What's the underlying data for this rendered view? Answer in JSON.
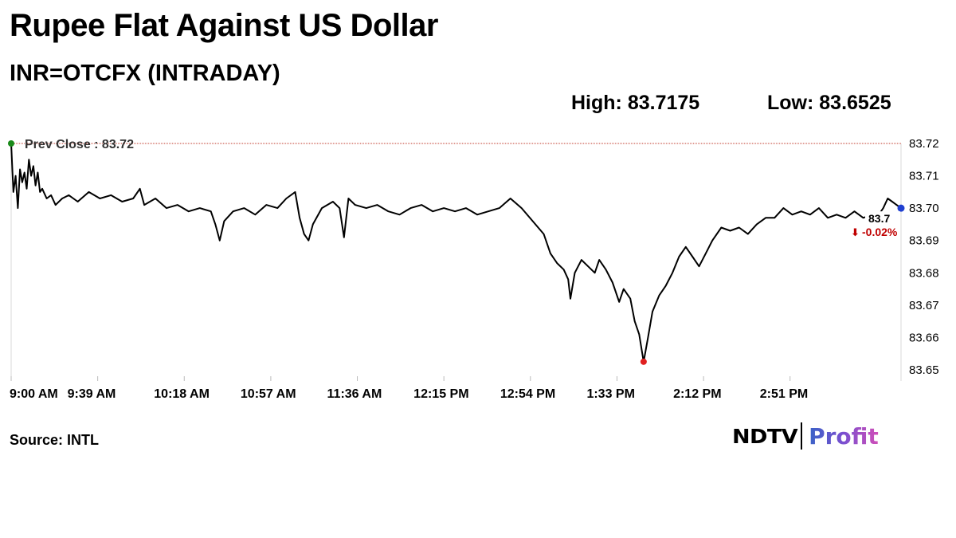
{
  "title": "Rupee Flat Against US Dollar",
  "subtitle": "INR=OTCFX (INTRADAY)",
  "stats": {
    "high": "High: 83.7175",
    "low": "Low: 83.6525"
  },
  "source": "Source: INTL",
  "logo": {
    "brand": "NDTV",
    "product": "Profit"
  },
  "colors": {
    "line": "#000000",
    "prev_close_line": "#c0392b",
    "start_marker": "#1a8a1a",
    "low_marker": "#e02020",
    "end_marker": "#1f3fd0",
    "change_negative": "#c00000"
  },
  "chart_data": {
    "type": "line",
    "x_start_minutes": 540,
    "x_end_minutes": 941,
    "ylim": [
      83.65,
      83.72
    ],
    "y_ticks": [
      83.72,
      83.71,
      83.7,
      83.69,
      83.68,
      83.67,
      83.66,
      83.65
    ],
    "y_tick_labels": [
      "83.72",
      "83.71",
      "83.70",
      "83.69",
      "83.68",
      "83.67",
      "83.66",
      "83.65"
    ],
    "x_tick_minutes": [
      540,
      579,
      618,
      657,
      696,
      735,
      774,
      813,
      852,
      891
    ],
    "x_tick_labels": [
      "9:00 AM",
      "9:39 AM",
      "10:18 AM",
      "10:57 AM",
      "11:36 AM",
      "12:15 PM",
      "12:54 PM",
      "1:33 PM",
      "2:12 PM",
      "2:51 PM"
    ],
    "prev_close": {
      "label": "Prev Close : 83.72",
      "value": 83.72
    },
    "last_value": {
      "label": "83.7",
      "value": 83.7
    },
    "change": {
      "arrow": "⬇",
      "label": "-0.02%"
    },
    "low_point": {
      "time": 825,
      "value": 83.6525
    },
    "series": [
      {
        "points": [
          [
            540,
            83.72
          ],
          [
            541,
            83.705
          ],
          [
            542,
            83.71
          ],
          [
            543,
            83.7
          ],
          [
            544,
            83.712
          ],
          [
            545,
            83.708
          ],
          [
            546,
            83.711
          ],
          [
            547,
            83.706
          ],
          [
            548,
            83.715
          ],
          [
            549,
            83.71
          ],
          [
            550,
            83.713
          ],
          [
            551,
            83.707
          ],
          [
            552,
            83.711
          ],
          [
            553,
            83.705
          ],
          [
            554,
            83.706
          ],
          [
            556,
            83.703
          ],
          [
            558,
            83.704
          ],
          [
            560,
            83.701
          ],
          [
            563,
            83.703
          ],
          [
            566,
            83.704
          ],
          [
            570,
            83.702
          ],
          [
            575,
            83.705
          ],
          [
            580,
            83.703
          ],
          [
            585,
            83.704
          ],
          [
            590,
            83.702
          ],
          [
            595,
            83.703
          ],
          [
            598,
            83.706
          ],
          [
            600,
            83.701
          ],
          [
            605,
            83.703
          ],
          [
            610,
            83.7
          ],
          [
            615,
            83.701
          ],
          [
            620,
            83.699
          ],
          [
            625,
            83.7
          ],
          [
            630,
            83.699
          ],
          [
            632,
            83.695
          ],
          [
            634,
            83.69
          ],
          [
            636,
            83.696
          ],
          [
            640,
            83.699
          ],
          [
            645,
            83.7
          ],
          [
            650,
            83.698
          ],
          [
            655,
            83.701
          ],
          [
            660,
            83.7
          ],
          [
            664,
            83.703
          ],
          [
            668,
            83.705
          ],
          [
            670,
            83.697
          ],
          [
            672,
            83.692
          ],
          [
            674,
            83.69
          ],
          [
            676,
            83.695
          ],
          [
            680,
            83.7
          ],
          [
            685,
            83.702
          ],
          [
            688,
            83.7
          ],
          [
            690,
            83.691
          ],
          [
            692,
            83.703
          ],
          [
            695,
            83.701
          ],
          [
            700,
            83.7
          ],
          [
            705,
            83.701
          ],
          [
            710,
            83.699
          ],
          [
            715,
            83.698
          ],
          [
            720,
            83.7
          ],
          [
            725,
            83.701
          ],
          [
            730,
            83.699
          ],
          [
            735,
            83.7
          ],
          [
            740,
            83.699
          ],
          [
            745,
            83.7
          ],
          [
            750,
            83.698
          ],
          [
            755,
            83.699
          ],
          [
            760,
            83.7
          ],
          [
            765,
            83.703
          ],
          [
            770,
            83.7
          ],
          [
            775,
            83.696
          ],
          [
            780,
            83.692
          ],
          [
            783,
            83.686
          ],
          [
            786,
            83.683
          ],
          [
            789,
            83.681
          ],
          [
            791,
            83.678
          ],
          [
            792,
            83.672
          ],
          [
            794,
            83.68
          ],
          [
            797,
            83.684
          ],
          [
            800,
            83.682
          ],
          [
            803,
            83.68
          ],
          [
            805,
            83.684
          ],
          [
            808,
            83.681
          ],
          [
            811,
            83.677
          ],
          [
            814,
            83.671
          ],
          [
            816,
            83.675
          ],
          [
            819,
            83.672
          ],
          [
            821,
            83.665
          ],
          [
            823,
            83.661
          ],
          [
            825,
            83.6525
          ],
          [
            827,
            83.66
          ],
          [
            829,
            83.668
          ],
          [
            832,
            83.673
          ],
          [
            835,
            83.676
          ],
          [
            838,
            83.68
          ],
          [
            841,
            83.685
          ],
          [
            844,
            83.688
          ],
          [
            847,
            83.685
          ],
          [
            850,
            83.682
          ],
          [
            853,
            83.686
          ],
          [
            856,
            83.69
          ],
          [
            860,
            83.694
          ],
          [
            864,
            83.693
          ],
          [
            868,
            83.694
          ],
          [
            872,
            83.692
          ],
          [
            876,
            83.695
          ],
          [
            880,
            83.697
          ],
          [
            884,
            83.697
          ],
          [
            888,
            83.7
          ],
          [
            892,
            83.698
          ],
          [
            896,
            83.699
          ],
          [
            900,
            83.698
          ],
          [
            904,
            83.7
          ],
          [
            908,
            83.697
          ],
          [
            912,
            83.698
          ],
          [
            916,
            83.697
          ],
          [
            920,
            83.699
          ],
          [
            924,
            83.697
          ],
          [
            928,
            83.698
          ],
          [
            930,
            83.697
          ],
          [
            933,
            83.7
          ],
          [
            935,
            83.703
          ],
          [
            937,
            83.702
          ],
          [
            939,
            83.701
          ],
          [
            941,
            83.7
          ]
        ]
      }
    ]
  }
}
